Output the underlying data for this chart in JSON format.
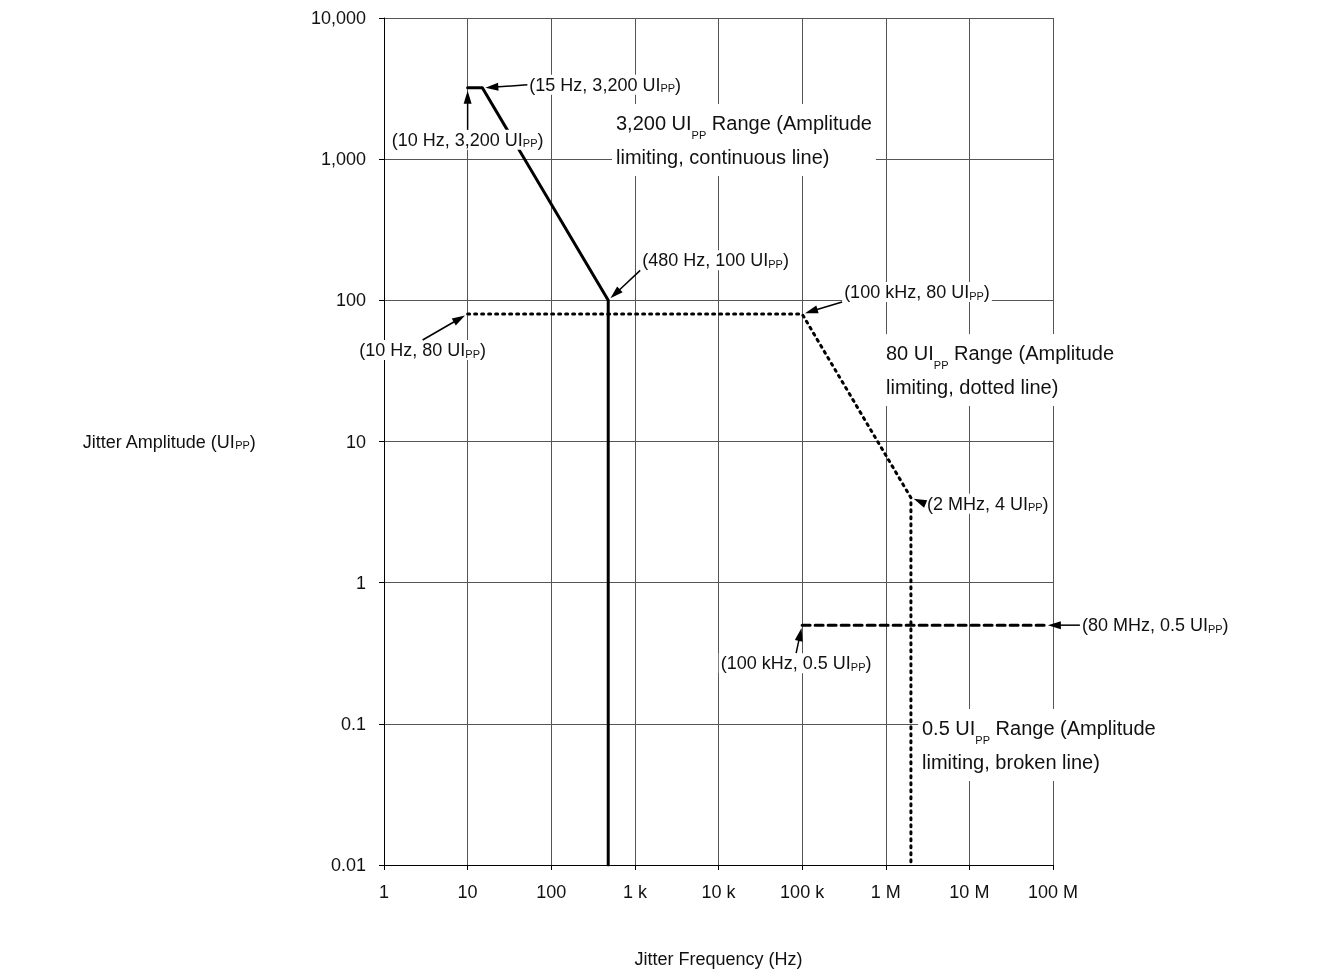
{
  "chart_data": {
    "type": "line",
    "xlabel": "Jitter Frequency (Hz)",
    "ylabel": "Jitter Amplitude (UI$_{PP}$)",
    "log": "xy",
    "grid": true,
    "marker": "none",
    "xlim": [
      1,
      100000000
    ],
    "ylim": [
      0.01,
      10000
    ],
    "xticks": [
      1,
      10,
      100,
      {
        "value": 1000,
        "label": "1 k"
      },
      {
        "value": 10000,
        "label": "10 k"
      },
      {
        "value": 100000,
        "label": "100 k"
      },
      {
        "value": 1000000,
        "label": "1 M"
      },
      {
        "value": 10000000,
        "label": "10 M"
      },
      {
        "value": 100000000,
        "label": "100 M"
      }
    ],
    "yticks": [
      0.01,
      0.1,
      1,
      10,
      100,
      {
        "value": 1000,
        "label": "1,000"
      },
      {
        "value": 10000,
        "label": "10,000"
      }
    ],
    "series": [
      {
        "color": "#000000",
        "line_style": "solid",
        "x": [
          10,
          15,
          480,
          480
        ],
        "values": [
          3200,
          3200,
          100,
          0.01
        ]
      },
      {
        "color": "#000000",
        "line_style": "dotted",
        "x": [
          10,
          100000,
          2000000,
          2000000
        ],
        "values": [
          80,
          80,
          4,
          0.01
        ]
      },
      {
        "color": "#000000",
        "line_style": "dashed",
        "x": [
          100000,
          80000000
        ],
        "values": [
          0.5,
          0.5
        ]
      }
    ],
    "annotations": [
      {
        "text": "(15 Hz, 3,200 UI$_{PP}$)",
        "x": 15,
        "y": 3200
      },
      {
        "text": "(10 Hz, 3,200 UI$_{PP}$)",
        "x": 10,
        "y": 3200
      },
      {
        "text": "(480 Hz, 100 UI$_{PP}$)",
        "x": 480,
        "y": 100
      },
      {
        "text": "(100 kHz, 80 UI$_{PP}$)",
        "x": 100000,
        "y": 80
      },
      {
        "text": "(10 Hz, 80 UI$_{PP}$)",
        "x": 10,
        "y": 80
      },
      {
        "text": "(2 MHz, 4 UI$_{PP}$)",
        "x": 2000000,
        "y": 4
      },
      {
        "text": "(80 MHz, 0.5 UI$_{PP}$)",
        "x": 80000000,
        "y": 0.5
      },
      {
        "text": "(100 kHz, 0.5 UI$_{PP}$)",
        "x": 100000,
        "y": 0.5
      },
      "3,200 UI$_{PP}$ Range (Amplitude\nlimiting, continuous line)",
      "80 UI$_{PP}$ Range (Amplitude\nlimiting, dotted line)",
      "0.5 UI$_{PP}$ Range (Amplitude\nlimiting, broken line)"
    ]
  }
}
